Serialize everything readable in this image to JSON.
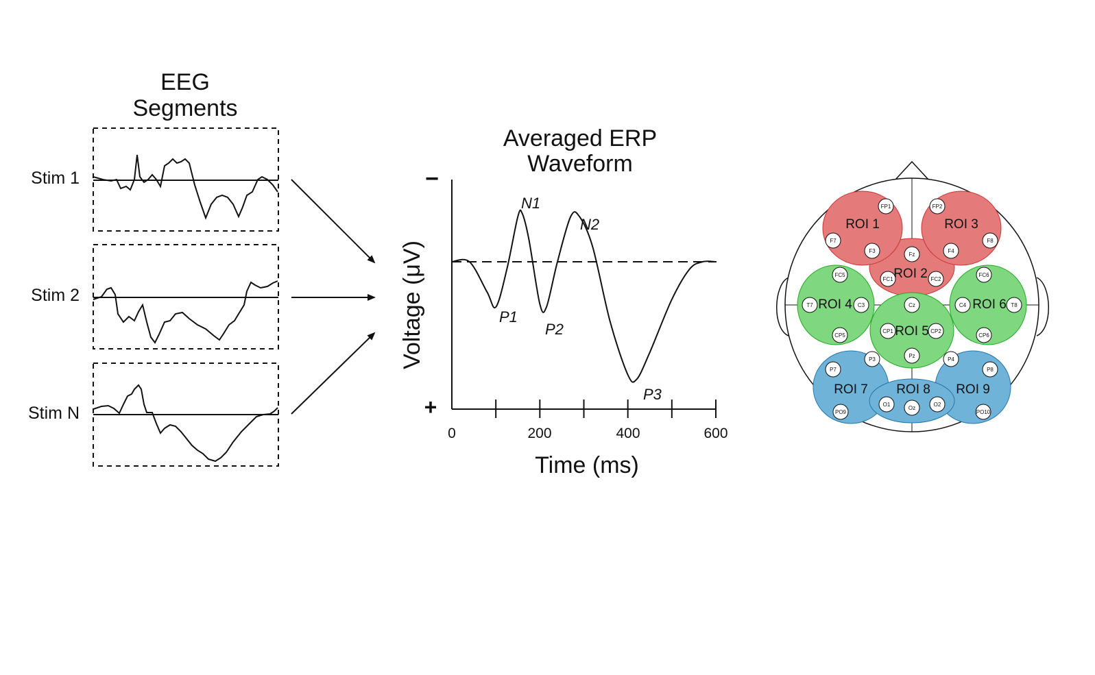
{
  "eeg": {
    "title_line1": "EEG",
    "title_line2": "Segments",
    "stims": [
      "Stim 1",
      "Stim 2",
      "Stim N"
    ]
  },
  "erp": {
    "title_line1": "Averaged ERP",
    "title_line2": "Waveform",
    "minus_sign": "−",
    "plus_sign": "+",
    "ylabel": "Voltage (μV)",
    "xlabel": "Time (ms)",
    "ticks": [
      "0",
      "200",
      "400",
      "600"
    ],
    "components": [
      "N1",
      "N2",
      "P1",
      "P2",
      "P3"
    ]
  },
  "chart_data": {
    "type": "line",
    "title": "Averaged ERP Waveform",
    "xlabel": "Time (ms)",
    "ylabel": "Voltage (μV)",
    "xlim": [
      0,
      600
    ],
    "polarity": "negative up",
    "baseline": "dashed",
    "series": [
      {
        "x": [
          0,
          40,
          80,
          100,
          125,
          150,
          160,
          175,
          200,
          215,
          240,
          270,
          290,
          320,
          360,
          400,
          420,
          450,
          500,
          540,
          570,
          600
        ],
        "values": [
          0,
          0,
          2,
          3,
          0.5,
          -3,
          -3.2,
          -1.5,
          2.8,
          3,
          0,
          -3,
          -3,
          -1,
          4,
          7.5,
          7.8,
          6,
          2.5,
          0.5,
          0,
          0
        ]
      }
    ],
    "annotations": [
      "N1",
      "N2",
      "P1",
      "P2",
      "P3"
    ]
  },
  "head": {
    "rois": [
      "ROI 1",
      "ROI 2",
      "ROI 3",
      "ROI 4",
      "ROI 5",
      "ROI 6",
      "ROI 7",
      "ROI 8",
      "ROI 9"
    ],
    "electrodes": [
      "FP1",
      "FP2",
      "F7",
      "F3",
      "Fz",
      "F4",
      "F8",
      "FC5",
      "FC1",
      "FC2",
      "FC6",
      "T7",
      "C3",
      "Cz",
      "C4",
      "T8",
      "CP5",
      "CP1",
      "CP2",
      "CP6",
      "P7",
      "P3",
      "Pz",
      "P4",
      "P8",
      "PO9",
      "O1",
      "Oz",
      "O2",
      "PO10"
    ],
    "colors": {
      "frontal": "#e47a7a",
      "central": "#7fd77f",
      "posterior": "#6fb3d9"
    }
  }
}
